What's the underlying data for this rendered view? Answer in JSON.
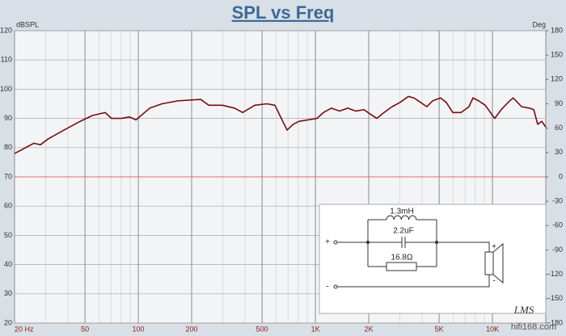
{
  "chart_data": {
    "type": "line",
    "title": "SPL vs Freq",
    "y_label": "dBSPL",
    "y2_label": "Deg",
    "x": [
      20,
      25.7,
      28,
      31,
      38,
      47,
      55,
      65,
      70.6,
      80,
      89,
      97,
      116,
      136,
      167,
      225,
      250,
      299,
      350,
      388,
      455,
      532,
      591,
      642,
      692,
      750,
      810,
      1020,
      1110,
      1230,
      1370,
      1520,
      1690,
      1880,
      2040,
      2220,
      2440,
      2710,
      3010,
      3350,
      3600,
      3920,
      4260,
      4590,
      5090,
      5480,
      5970,
      6640,
      7360,
      7760,
      8360,
      9100,
      10300,
      11200,
      12500,
      13100,
      14600,
      16200,
      17100,
      18000,
      19000,
      20000
    ],
    "series": [
      {
        "name": "SPL",
        "color": "#7a0c0c",
        "values": [
          78,
          81.5,
          81,
          83,
          86,
          89,
          91,
          92,
          90,
          90,
          90.5,
          89.5,
          93.5,
          95,
          96,
          96.5,
          94.5,
          94.5,
          93.5,
          92,
          94.5,
          95,
          94.5,
          90,
          86,
          88,
          89,
          90,
          92,
          93.5,
          92.5,
          93.5,
          92.5,
          93,
          91.5,
          90,
          92,
          94,
          95.5,
          97.5,
          97,
          95.5,
          94,
          96,
          97,
          95.5,
          92,
          92,
          94,
          97,
          96,
          94.5,
          90,
          93,
          96,
          97,
          94,
          93.5,
          93,
          88,
          89,
          87
        ]
      }
    ],
    "log_x": true,
    "xlim": [
      20,
      20000
    ],
    "xticks": [
      {
        "value": 20,
        "label": "20 Hz"
      },
      50,
      100,
      200,
      500,
      {
        "value": 1000,
        "label": "1K"
      },
      {
        "value": 2000,
        "label": "2K"
      },
      {
        "value": 5000,
        "label": "5K"
      },
      {
        "value": 10000,
        "label": "10K"
      }
    ],
    "ylim": [
      20,
      120
    ],
    "yticks": [
      20,
      30,
      40,
      50,
      60,
      70,
      80,
      90,
      100,
      110,
      120
    ],
    "y2lim": [
      -180,
      180
    ],
    "y2ticks": [
      -180,
      -150,
      -120,
      -90,
      -60,
      -30,
      0,
      30,
      60,
      90,
      120,
      150,
      180
    ],
    "grid": true,
    "ref_line": 70,
    "ref_color": "#e07070"
  },
  "inset": {
    "inductor": "1.3mH",
    "capacitor": "2.2uF",
    "resistor": "16.8Ω",
    "in_plus": "+",
    "in_minus": "-",
    "spk_plus": "+",
    "spk_minus": "-"
  },
  "watermark": {
    "logo": "LMS",
    "site": "hifi168.com"
  }
}
